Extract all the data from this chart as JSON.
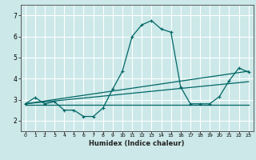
{
  "xlabel": "Humidex (Indice chaleur)",
  "bg_color": "#cce8e8",
  "grid_color": "#ffffff",
  "line_color": "#006666",
  "xlim": [
    -0.5,
    23.5
  ],
  "ylim": [
    1.5,
    7.5
  ],
  "yticks": [
    2,
    3,
    4,
    5,
    6,
    7
  ],
  "xticks": [
    0,
    1,
    2,
    3,
    4,
    5,
    6,
    7,
    8,
    9,
    10,
    11,
    12,
    13,
    14,
    15,
    16,
    17,
    18,
    19,
    20,
    21,
    22,
    23
  ],
  "line1_x": [
    0,
    1,
    2,
    3,
    4,
    5,
    6,
    7,
    8,
    9,
    10,
    11,
    12,
    13,
    14,
    15,
    16,
    17,
    18,
    19,
    20,
    21,
    22,
    23
  ],
  "line1_y": [
    2.8,
    3.1,
    2.8,
    2.9,
    2.5,
    2.5,
    2.2,
    2.2,
    2.6,
    3.5,
    4.35,
    6.0,
    6.55,
    6.75,
    6.35,
    6.2,
    3.6,
    2.8,
    2.8,
    2.8,
    3.15,
    3.9,
    4.5,
    4.3
  ],
  "line2_x": [
    0,
    23
  ],
  "line2_y": [
    2.8,
    4.35
  ],
  "line3_x": [
    0,
    23
  ],
  "line3_y": [
    2.8,
    3.85
  ],
  "line4_x": [
    0,
    23
  ],
  "line4_y": [
    2.75,
    2.75
  ]
}
